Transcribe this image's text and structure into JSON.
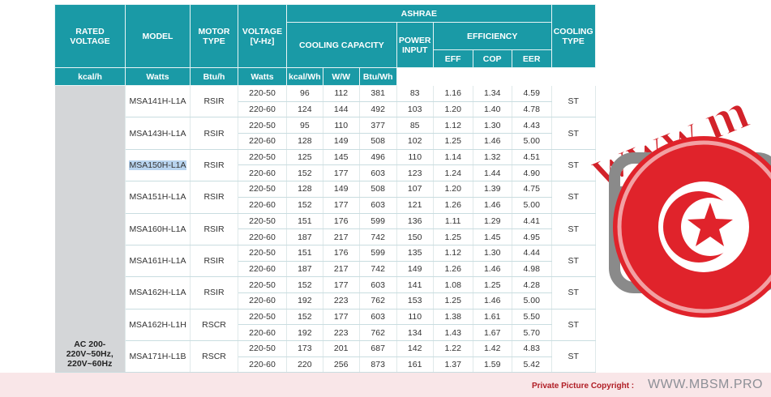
{
  "table": {
    "headers": {
      "rated_voltage": "RATED VOLTAGE",
      "model": "MODEL",
      "motor_type": "MOTOR TYPE",
      "voltage": "VOLTAGE [V-Hz]",
      "ashrae": "ASHRAE",
      "cooling_capacity": "COOLING CAPACITY",
      "power_input": "POWER INPUT",
      "efficiency": "EFFICIENCY",
      "cooling_type": "COOLING TYPE",
      "eff": "EFF",
      "cop": "COP",
      "eer": "EER",
      "unit_kcal_h": "kcal/h",
      "unit_watts": "Watts",
      "unit_btu_h": "Btu/h",
      "unit_power_watts": "Watts",
      "unit_kcal_wh": "kcal/Wh",
      "unit_w_w": "W/W",
      "unit_btu_wh": "Btu/Wh"
    },
    "rated_voltage_value": "AC 200-220V~50Hz, 220V~60Hz",
    "models": [
      {
        "model": "MSA141H-L1A",
        "motor": "RSIR",
        "cooling": "ST",
        "rows": [
          {
            "voltage": "220-50",
            "kcal": "96",
            "watts": "112",
            "btu": "381",
            "power": "83",
            "eff": "1.16",
            "cop": "1.34",
            "eer": "4.59"
          },
          {
            "voltage": "220-60",
            "kcal": "124",
            "watts": "144",
            "btu": "492",
            "power": "103",
            "eff": "1.20",
            "cop": "1.40",
            "eer": "4.78"
          }
        ]
      },
      {
        "model": "MSA143H-L1A",
        "motor": "RSIR",
        "cooling": "ST",
        "rows": [
          {
            "voltage": "220-50",
            "kcal": "95",
            "watts": "110",
            "btu": "377",
            "power": "85",
            "eff": "1.12",
            "cop": "1.30",
            "eer": "4.43"
          },
          {
            "voltage": "220-60",
            "kcal": "128",
            "watts": "149",
            "btu": "508",
            "power": "102",
            "eff": "1.25",
            "cop": "1.46",
            "eer": "5.00"
          }
        ]
      },
      {
        "model": "MSA150H-L1A",
        "motor": "RSIR",
        "cooling": "ST",
        "rows": [
          {
            "voltage": "220-50",
            "kcal": "125",
            "watts": "145",
            "btu": "496",
            "power": "110",
            "eff": "1.14",
            "cop": "1.32",
            "eer": "4.51"
          },
          {
            "voltage": "220-60",
            "kcal": "152",
            "watts": "177",
            "btu": "603",
            "power": "123",
            "eff": "1.24",
            "cop": "1.44",
            "eer": "4.90"
          }
        ]
      },
      {
        "model": "MSA151H-L1A",
        "motor": "RSIR",
        "cooling": "ST",
        "rows": [
          {
            "voltage": "220-50",
            "kcal": "128",
            "watts": "149",
            "btu": "508",
            "power": "107",
            "eff": "1.20",
            "cop": "1.39",
            "eer": "4.75"
          },
          {
            "voltage": "220-60",
            "kcal": "152",
            "watts": "177",
            "btu": "603",
            "power": "121",
            "eff": "1.26",
            "cop": "1.46",
            "eer": "5.00"
          }
        ]
      },
      {
        "model": "MSA160H-L1A",
        "motor": "RSIR",
        "cooling": "ST",
        "rows": [
          {
            "voltage": "220-50",
            "kcal": "151",
            "watts": "176",
            "btu": "599",
            "power": "136",
            "eff": "1.11",
            "cop": "1.29",
            "eer": "4.41"
          },
          {
            "voltage": "220-60",
            "kcal": "187",
            "watts": "217",
            "btu": "742",
            "power": "150",
            "eff": "1.25",
            "cop": "1.45",
            "eer": "4.95"
          }
        ]
      },
      {
        "model": "MSA161H-L1A",
        "motor": "RSIR",
        "cooling": "ST",
        "rows": [
          {
            "voltage": "220-50",
            "kcal": "151",
            "watts": "176",
            "btu": "599",
            "power": "135",
            "eff": "1.12",
            "cop": "1.30",
            "eer": "4.44"
          },
          {
            "voltage": "220-60",
            "kcal": "187",
            "watts": "217",
            "btu": "742",
            "power": "149",
            "eff": "1.26",
            "cop": "1.46",
            "eer": "4.98"
          }
        ]
      },
      {
        "model": "MSA162H-L1A",
        "motor": "RSIR",
        "cooling": "ST",
        "rows": [
          {
            "voltage": "220-50",
            "kcal": "152",
            "watts": "177",
            "btu": "603",
            "power": "141",
            "eff": "1.08",
            "cop": "1.25",
            "eer": "4.28"
          },
          {
            "voltage": "220-60",
            "kcal": "192",
            "watts": "223",
            "btu": "762",
            "power": "153",
            "eff": "1.25",
            "cop": "1.46",
            "eer": "5.00"
          }
        ]
      },
      {
        "model": "MSA162H-L1H",
        "motor": "RSCR",
        "cooling": "ST",
        "rows": [
          {
            "voltage": "220-50",
            "kcal": "152",
            "watts": "177",
            "btu": "603",
            "power": "110",
            "eff": "1.38",
            "cop": "1.61",
            "eer": "5.50"
          },
          {
            "voltage": "220-60",
            "kcal": "192",
            "watts": "223",
            "btu": "762",
            "power": "134",
            "eff": "1.43",
            "cop": "1.67",
            "eer": "5.70"
          }
        ]
      },
      {
        "model": "MSA171H-L1B",
        "motor": "RSCR",
        "cooling": "ST",
        "rows": [
          {
            "voltage": "220-50",
            "kcal": "173",
            "watts": "201",
            "btu": "687",
            "power": "142",
            "eff": "1.22",
            "cop": "1.42",
            "eer": "4.83"
          },
          {
            "voltage": "220-60",
            "kcal": "220",
            "watts": "256",
            "btu": "873",
            "power": "161",
            "eff": "1.37",
            "cop": "1.59",
            "eer": "5.42"
          }
        ]
      }
    ]
  },
  "watermark": {
    "text": "www.m",
    "icon": "camera-tunisia-flag-icon",
    "colors": {
      "text": "#d2222a",
      "camera": "#8a8a8a",
      "flag": "#e0232b"
    }
  },
  "footer": {
    "copyright_label": "Private Picture Copyright :",
    "url": "WWW.MBSM.PRO"
  },
  "colors": {
    "header_bg": "#1a9aa6",
    "header_text": "#ffffff",
    "side_gray": "#d4d6d8",
    "footer_bg": "#f9e6e8"
  }
}
